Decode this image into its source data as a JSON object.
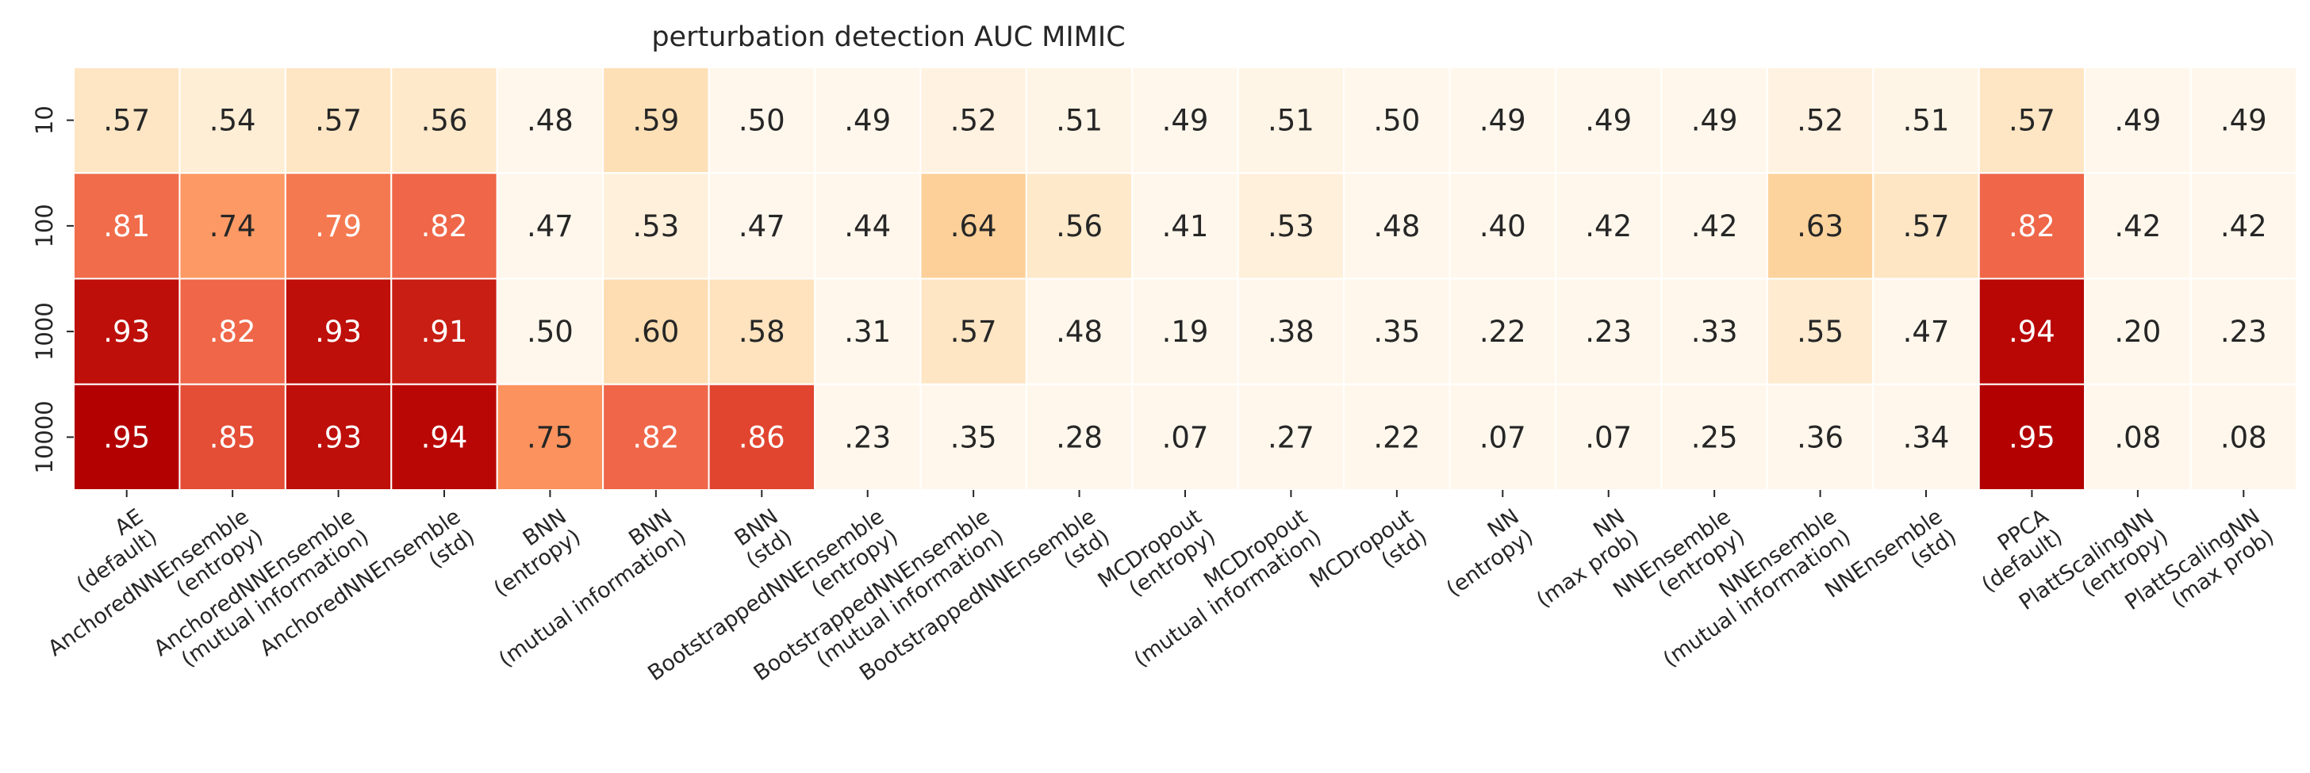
{
  "chart_data": {
    "type": "heatmap",
    "title": "perturbation detection AUC MIMIC",
    "colormap": "OrRd",
    "value_range": [
      0.5,
      0.95
    ],
    "x_categories": [
      [
        "AE",
        "(default)"
      ],
      [
        "AnchoredNNEnsemble",
        "(entropy)"
      ],
      [
        "AnchoredNNEnsemble",
        "(mutual information)"
      ],
      [
        "AnchoredNNEnsemble",
        "(std)"
      ],
      [
        "BNN",
        "(entropy)"
      ],
      [
        "BNN",
        "(mutual information)"
      ],
      [
        "BNN",
        "(std)"
      ],
      [
        "BootstrappedNNEnsemble",
        "(entropy)"
      ],
      [
        "BootstrappedNNEnsemble",
        "(mutual information)"
      ],
      [
        "BootstrappedNNEnsemble",
        "(std)"
      ],
      [
        "MCDropout",
        "(entropy)"
      ],
      [
        "MCDropout",
        "(mutual information)"
      ],
      [
        "MCDropout",
        "(std)"
      ],
      [
        "NN",
        "(entropy)"
      ],
      [
        "NN",
        "(max prob)"
      ],
      [
        "NNEnsemble",
        "(entropy)"
      ],
      [
        "NNEnsemble",
        "(mutual information)"
      ],
      [
        "NNEnsemble",
        "(std)"
      ],
      [
        "PPCA",
        "(default)"
      ],
      [
        "PlattScalingNN",
        "(entropy)"
      ],
      [
        "PlattScalingNN",
        "(max prob)"
      ]
    ],
    "y_categories": [
      "10",
      "100",
      "1000",
      "10000"
    ],
    "values": [
      [
        0.57,
        0.54,
        0.57,
        0.56,
        0.48,
        0.59,
        0.5,
        0.49,
        0.52,
        0.51,
        0.49,
        0.51,
        0.5,
        0.49,
        0.49,
        0.49,
        0.52,
        0.51,
        0.57,
        0.49,
        0.49
      ],
      [
        0.81,
        0.74,
        0.79,
        0.82,
        0.47,
        0.53,
        0.47,
        0.44,
        0.64,
        0.56,
        0.41,
        0.53,
        0.48,
        0.4,
        0.42,
        0.42,
        0.63,
        0.57,
        0.82,
        0.42,
        0.42
      ],
      [
        0.93,
        0.82,
        0.93,
        0.91,
        0.5,
        0.6,
        0.58,
        0.31,
        0.57,
        0.48,
        0.19,
        0.38,
        0.35,
        0.22,
        0.23,
        0.33,
        0.55,
        0.47,
        0.94,
        0.2,
        0.23
      ],
      [
        0.95,
        0.85,
        0.93,
        0.94,
        0.75,
        0.82,
        0.86,
        0.23,
        0.35,
        0.28,
        0.07,
        0.27,
        0.22,
        0.07,
        0.07,
        0.25,
        0.36,
        0.34,
        0.95,
        0.08,
        0.08
      ]
    ],
    "cell_labels": [
      [
        ".57",
        ".54",
        ".57",
        ".56",
        ".48",
        ".59",
        ".50",
        ".49",
        ".52",
        ".51",
        ".49",
        ".51",
        ".50",
        ".49",
        ".49",
        ".49",
        ".52",
        ".51",
        ".57",
        ".49",
        ".49"
      ],
      [
        ".81",
        ".74",
        ".79",
        ".82",
        ".47",
        ".53",
        ".47",
        ".44",
        ".64",
        ".56",
        ".41",
        ".53",
        ".48",
        ".40",
        ".42",
        ".42",
        ".63",
        ".57",
        ".82",
        ".42",
        ".42"
      ],
      [
        ".93",
        ".82",
        ".93",
        ".91",
        ".50",
        ".60",
        ".58",
        ".31",
        ".57",
        ".48",
        ".19",
        ".38",
        ".35",
        ".22",
        ".23",
        ".33",
        ".55",
        ".47",
        ".94",
        ".20",
        ".23"
      ],
      [
        ".95",
        ".85",
        ".93",
        ".94",
        ".75",
        ".82",
        ".86",
        ".23",
        ".35",
        ".28",
        ".07",
        ".27",
        ".22",
        ".07",
        ".07",
        ".25",
        ".36",
        ".34",
        ".95",
        ".08",
        ".08"
      ]
    ],
    "colorbar": false
  }
}
